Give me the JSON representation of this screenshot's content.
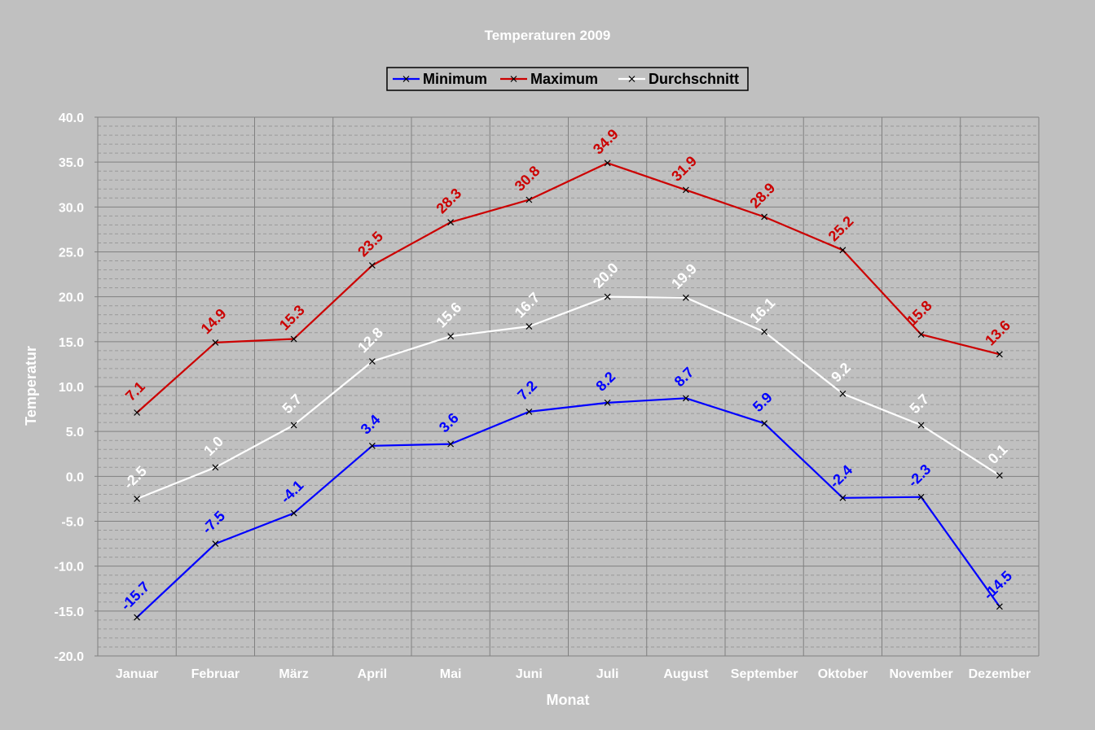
{
  "chart_data": {
    "type": "line",
    "title": "Temperaturen 2009",
    "xlabel": "Monat",
    "ylabel": "Temperatur",
    "categories": [
      "Januar",
      "Februar",
      "März",
      "April",
      "Mai",
      "Juni",
      "Juli",
      "August",
      "September",
      "Oktober",
      "November",
      "Dezember"
    ],
    "ylim": [
      -20,
      40
    ],
    "y_major_step": 5,
    "y_minor_step": 1,
    "grid": true,
    "legend_position": "top",
    "y_tick_labels": [
      "40.0",
      "35.0",
      "30.0",
      "25.0",
      "20.0",
      "15.0",
      "10.0",
      "5.0",
      "0.0",
      "-5.0",
      "-10.0",
      "-15.0",
      "-20.0"
    ],
    "series": [
      {
        "name": "Minimum",
        "color": "#0000ff",
        "values": [
          -15.7,
          -7.5,
          -4.1,
          3.4,
          3.6,
          7.2,
          8.2,
          8.7,
          5.9,
          -2.4,
          -2.3,
          -14.5
        ],
        "labels": [
          "-15.7",
          "-7.5",
          "-4.1",
          "3.4",
          "3.6",
          "7.2",
          "8.2",
          "8.7",
          "5.9",
          "-2.4",
          "-2.3",
          "-14.5"
        ]
      },
      {
        "name": "Maximum",
        "color": "#cc0000",
        "values": [
          7.1,
          14.9,
          15.3,
          23.5,
          28.3,
          30.8,
          34.9,
          31.9,
          28.9,
          25.2,
          15.8,
          13.6
        ],
        "labels": [
          "7.1",
          "14.9",
          "15.3",
          "23.5",
          "28.3",
          "30.8",
          "34.9",
          "31.9",
          "28.9",
          "25.2",
          "15.8",
          "13.6"
        ]
      },
      {
        "name": "Durchschnitt",
        "color": "#ffffff",
        "values": [
          -2.5,
          1.0,
          5.7,
          12.8,
          15.6,
          16.7,
          20.0,
          19.9,
          16.1,
          9.2,
          5.7,
          0.1
        ],
        "labels": [
          "-2.5",
          "1.0",
          "5.7",
          "12.8",
          "15.6",
          "16.7",
          "20.0",
          "19.9",
          "16.1",
          "9.2",
          "5.7",
          "0.1"
        ]
      }
    ]
  },
  "colors": {
    "background": "#c0c0c0",
    "grid_major": "#808080",
    "grid_minor": "#999999",
    "text": "#ffffff"
  }
}
